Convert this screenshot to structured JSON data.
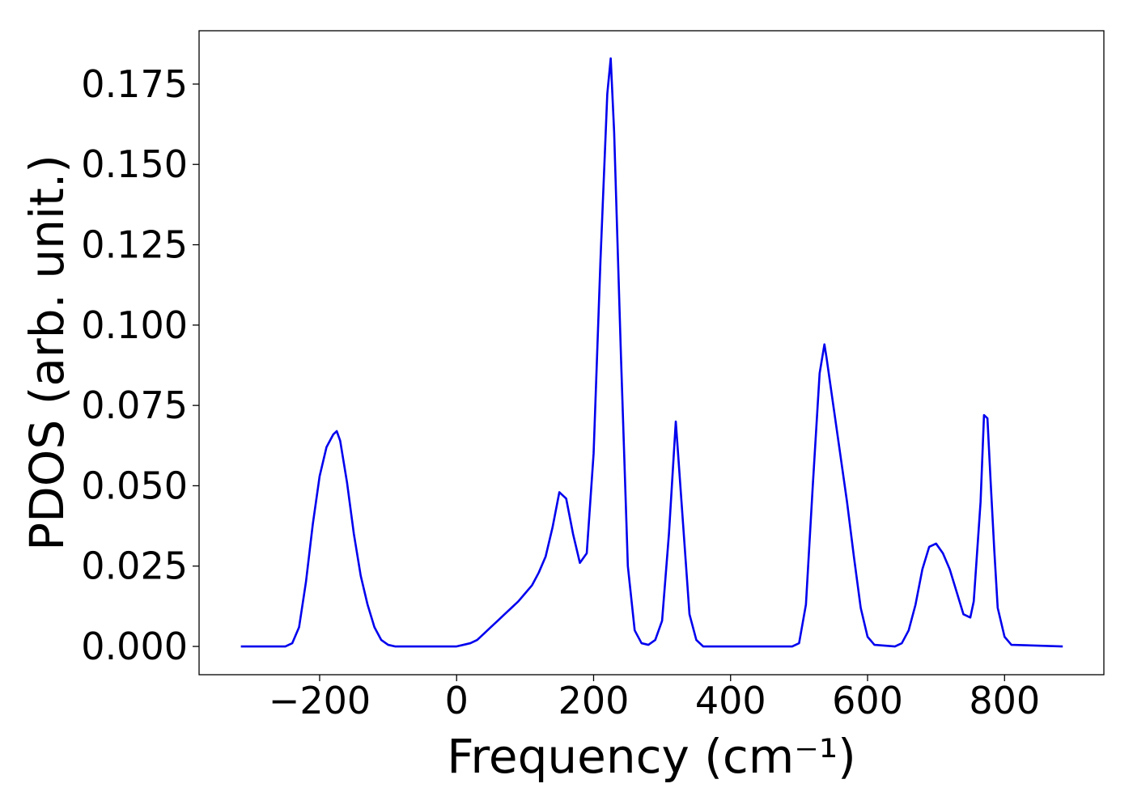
{
  "chart_data": {
    "type": "line",
    "xlabel": "Frequency (cm⁻¹)",
    "ylabel": "PDOS (arb. unit.)",
    "x": [
      -315,
      -250,
      -240,
      -230,
      -220,
      -210,
      -200,
      -190,
      -180,
      -175,
      -170,
      -160,
      -150,
      -140,
      -130,
      -120,
      -110,
      -100,
      -90,
      0,
      10,
      20,
      30,
      40,
      50,
      60,
      70,
      80,
      90,
      100,
      110,
      120,
      130,
      140,
      150,
      160,
      170,
      180,
      190,
      200,
      210,
      220,
      225,
      230,
      240,
      250,
      260,
      270,
      280,
      290,
      300,
      310,
      320,
      330,
      340,
      350,
      360,
      490,
      500,
      510,
      520,
      530,
      537,
      540,
      550,
      560,
      570,
      580,
      590,
      600,
      610,
      640,
      650,
      660,
      670,
      680,
      690,
      700,
      710,
      720,
      730,
      740,
      750,
      755,
      765,
      770,
      775,
      780,
      785,
      790,
      800,
      810,
      885
    ],
    "series": [
      {
        "color": "#0000ee",
        "values": [
          0,
          0,
          0.001,
          0.006,
          0.02,
          0.038,
          0.053,
          0.062,
          0.066,
          0.067,
          0.064,
          0.051,
          0.035,
          0.022,
          0.013,
          0.006,
          0.002,
          0.0005,
          0,
          0,
          0.0005,
          0.001,
          0.002,
          0.004,
          0.006,
          0.008,
          0.01,
          0.012,
          0.014,
          0.0165,
          0.019,
          0.023,
          0.028,
          0.037,
          0.048,
          0.046,
          0.035,
          0.026,
          0.029,
          0.06,
          0.12,
          0.172,
          0.183,
          0.16,
          0.09,
          0.025,
          0.005,
          0.001,
          0.0005,
          0.002,
          0.008,
          0.035,
          0.07,
          0.04,
          0.01,
          0.002,
          0,
          0,
          0.001,
          0.013,
          0.05,
          0.085,
          0.094,
          0.09,
          0.075,
          0.06,
          0.045,
          0.028,
          0.012,
          0.003,
          0.0005,
          0,
          0.001,
          0.005,
          0.013,
          0.024,
          0.031,
          0.032,
          0.029,
          0.024,
          0.017,
          0.01,
          0.009,
          0.014,
          0.045,
          0.072,
          0.071,
          0.05,
          0.03,
          0.012,
          0.003,
          0.0005,
          0
        ]
      }
    ],
    "xlim": [
      -376,
      945
    ],
    "ylim": [
      -0.0088,
      0.1916
    ],
    "xticks": [
      {
        "value": -200,
        "label": "−200"
      },
      0,
      200,
      400,
      600,
      800
    ],
    "yticks": [
      {
        "value": 0,
        "label": "0.000"
      },
      0.025,
      {
        "value": 0.05,
        "label": "0.050"
      },
      0.075,
      {
        "value": 0.1,
        "label": "0.100"
      },
      0.125,
      {
        "value": 0.15,
        "label": "0.150"
      },
      0.175
    ],
    "grid": false
  }
}
